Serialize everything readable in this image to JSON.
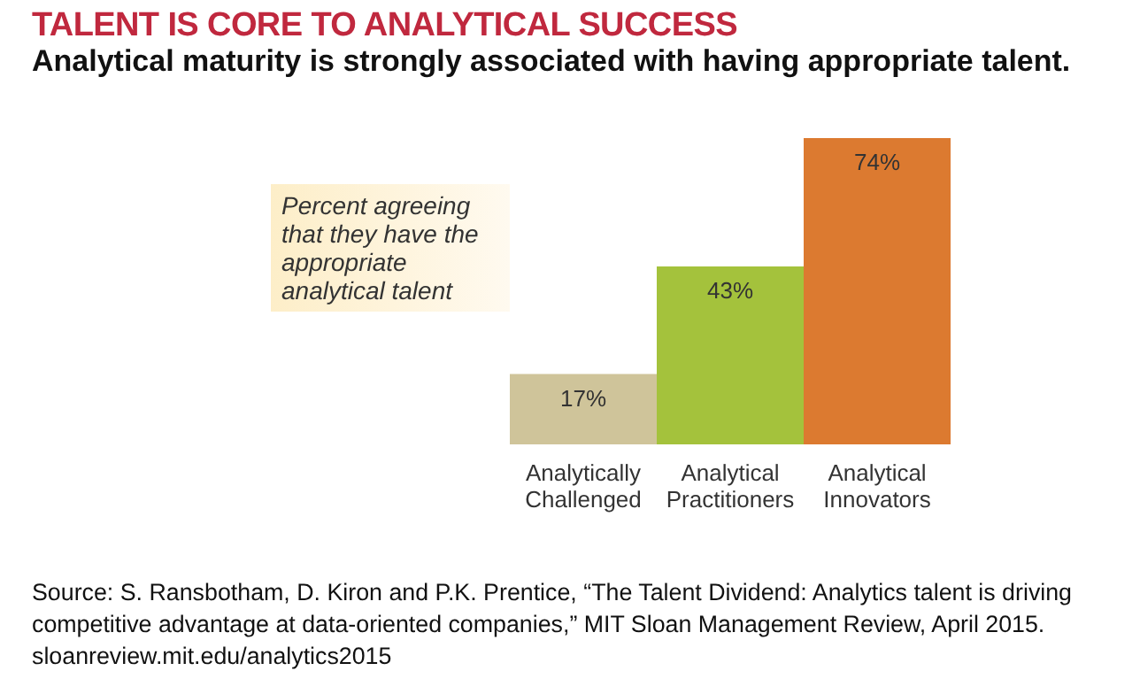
{
  "chart_data": {
    "type": "bar",
    "title": "TALENT IS CORE TO ANALYTICAL SUCCESS",
    "subtitle": "Analytical maturity is strongly associated with having appropriate talent.",
    "categories": [
      "Analytically Challenged",
      "Analytical Practitioners",
      "Analytical Innovators"
    ],
    "values": [
      17,
      43,
      74
    ],
    "colors": [
      "#cfc49a",
      "#a4c23c",
      "#dc7a30"
    ],
    "value_labels": [
      "17%",
      "43%",
      "74%"
    ],
    "annotations": [
      "Percent agreeing that they have the appropriate analytical talent",
      "Source: S. Ransbotham, D. Kiron and P.K. Prentice, “The Talent Dividend: Analytics talent is driving competitive advantage at data-oriented companies,” MIT Sloan Management Review, April 2015.   sloanreview.mit.edu/analytics2015"
    ]
  }
}
